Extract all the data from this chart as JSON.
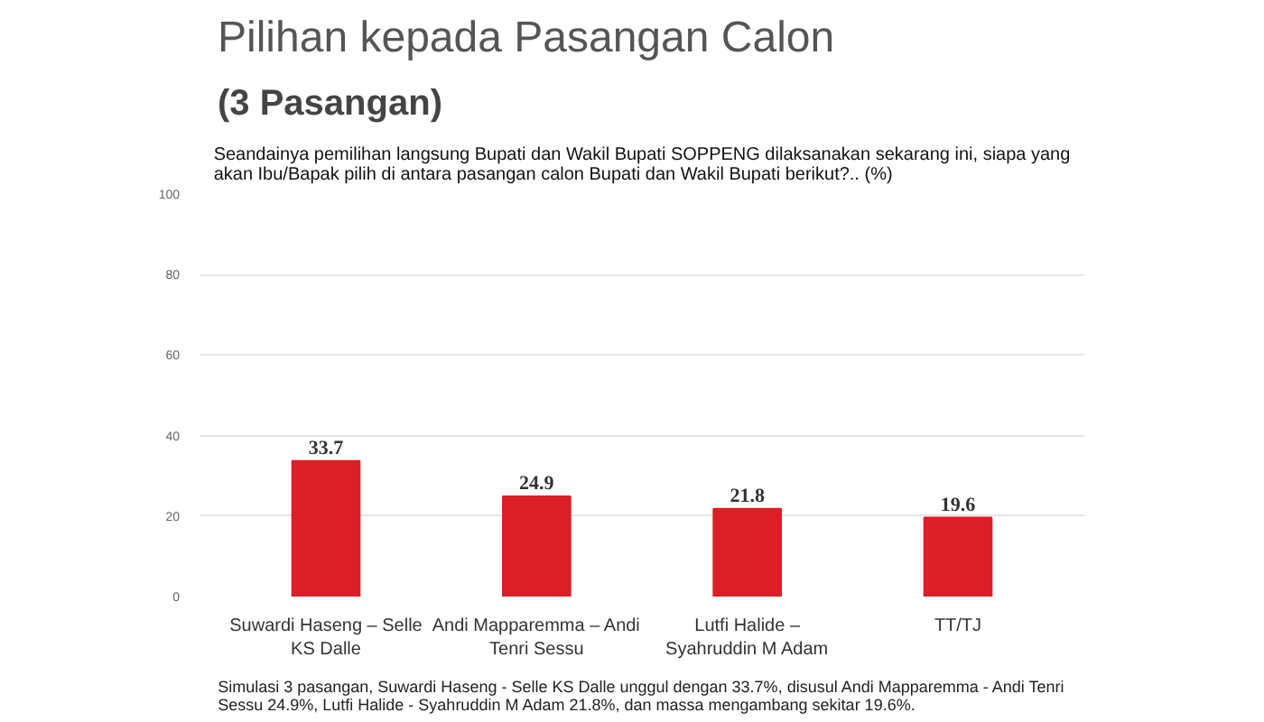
{
  "chart_data": {
    "type": "bar",
    "title": "Pilihan kepada Pasangan Calon",
    "subtitle": "(3 Pasangan)",
    "ylabel": "Seandainya pemilihan langsung Bupati dan Wakil Bupati SOPPENG dilaksanakan sekarang ini, siapa yang akan Ibu/Bapak pilih di antara pasangan calon Bupati dan Wakil Bupati berikut?.. (%)",
    "categories": [
      "Suwardi Haseng – Selle KS Dalle",
      "Andi Mapparemma – Andi Tenri Sessu",
      "Lutfi Halide – Syahruddin M Adam",
      "TT/TJ"
    ],
    "values": [
      33.7,
      24.9,
      21.8,
      19.6
    ],
    "color": "#dc1f26",
    "ylim": [
      0,
      100
    ],
    "yticks": [
      0,
      20,
      40,
      60,
      80,
      100
    ],
    "grid": "y",
    "data_labels": true,
    "annotations": [
      "Simulasi 3 pasangan, Suwardi Haseng - Selle KS Dalle unggul dengan 33.7%, disusul Andi Mapparemma - Andi Tenri Sessu 24.9%, Lutfi Halide - Syahruddin M Adam 21.8%, dan massa mengambang sekitar 19.6%."
    ]
  }
}
